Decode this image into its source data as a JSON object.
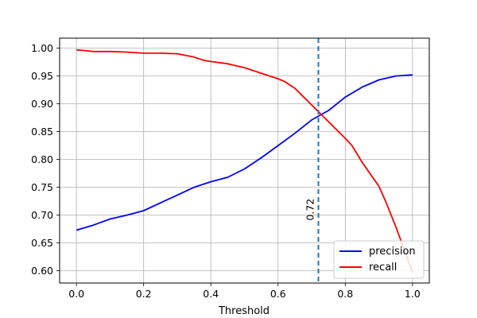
{
  "chart_data": {
    "type": "line",
    "title": "",
    "xlabel": "Threshold",
    "ylabel": "",
    "xlim": [
      -0.05,
      1.05
    ],
    "ylim": [
      0.578,
      1.018
    ],
    "xticks": [
      0.0,
      0.2,
      0.4,
      0.6,
      0.8,
      1.0
    ],
    "xtick_labels": [
      "0.0",
      "0.2",
      "0.4",
      "0.6",
      "0.8",
      "1.0"
    ],
    "yticks": [
      0.6,
      0.65,
      0.7,
      0.75,
      0.8,
      0.85,
      0.9,
      0.95,
      1.0
    ],
    "ytick_labels": [
      "0.60",
      "0.65",
      "0.70",
      "0.75",
      "0.80",
      "0.85",
      "0.90",
      "0.95",
      "1.00"
    ],
    "grid": true,
    "legend": "lower-right",
    "series": [
      {
        "name": "precision",
        "color": "#0000ff",
        "x": [
          0.0,
          0.05,
          0.1,
          0.15,
          0.2,
          0.25,
          0.3,
          0.35,
          0.4,
          0.45,
          0.5,
          0.55,
          0.6,
          0.65,
          0.7,
          0.75,
          0.8,
          0.85,
          0.9,
          0.95,
          1.0
        ],
        "y": [
          0.673,
          0.682,
          0.693,
          0.7,
          0.708,
          0.722,
          0.736,
          0.75,
          0.76,
          0.768,
          0.783,
          0.803,
          0.825,
          0.847,
          0.871,
          0.888,
          0.912,
          0.93,
          0.943,
          0.95,
          0.952
        ]
      },
      {
        "name": "recall",
        "color": "#ff0000",
        "x": [
          0.0,
          0.02,
          0.05,
          0.1,
          0.15,
          0.2,
          0.25,
          0.3,
          0.35,
          0.38,
          0.4,
          0.45,
          0.5,
          0.55,
          0.6,
          0.62,
          0.65,
          0.7,
          0.75,
          0.8,
          0.82,
          0.85,
          0.9,
          0.92,
          0.95,
          1.0
        ],
        "y": [
          0.997,
          0.996,
          0.994,
          0.994,
          0.993,
          0.991,
          0.991,
          0.99,
          0.984,
          0.978,
          0.976,
          0.972,
          0.965,
          0.955,
          0.945,
          0.94,
          0.928,
          0.898,
          0.868,
          0.838,
          0.825,
          0.795,
          0.752,
          0.725,
          0.68,
          0.597
        ]
      }
    ],
    "vline": {
      "x": 0.72,
      "label": "0.72",
      "color": "#1f77b4",
      "style": "dashed"
    }
  }
}
